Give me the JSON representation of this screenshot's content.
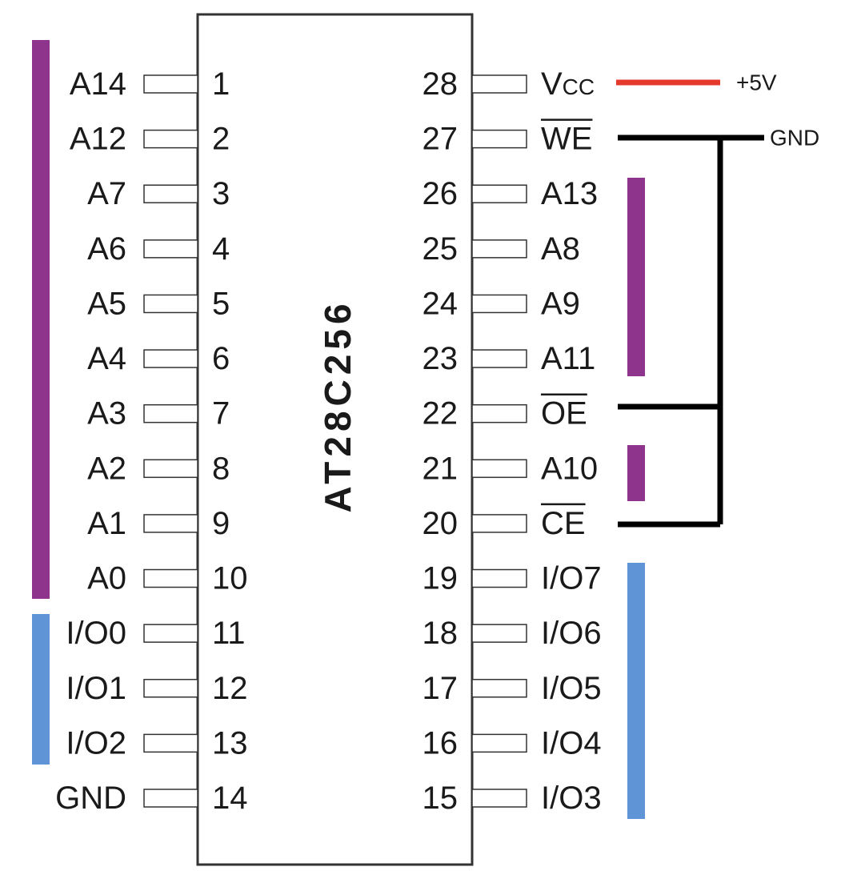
{
  "chip": {
    "name": "AT28C256"
  },
  "pins": {
    "left": [
      {
        "number": 1,
        "label": "A14"
      },
      {
        "number": 2,
        "label": "A12"
      },
      {
        "number": 3,
        "label": "A7"
      },
      {
        "number": 4,
        "label": "A6"
      },
      {
        "number": 5,
        "label": "A5"
      },
      {
        "number": 6,
        "label": "A4"
      },
      {
        "number": 7,
        "label": "A3"
      },
      {
        "number": 8,
        "label": "A2"
      },
      {
        "number": 9,
        "label": "A1"
      },
      {
        "number": 10,
        "label": "A0"
      },
      {
        "number": 11,
        "label": "I/O0"
      },
      {
        "number": 12,
        "label": "I/O1"
      },
      {
        "number": 13,
        "label": "I/O2"
      },
      {
        "number": 14,
        "label": "GND"
      }
    ],
    "right": [
      {
        "number": 28,
        "label": "Vcc"
      },
      {
        "number": 27,
        "label": "WE",
        "active_low": true
      },
      {
        "number": 26,
        "label": "A13"
      },
      {
        "number": 25,
        "label": "A8"
      },
      {
        "number": 24,
        "label": "A9"
      },
      {
        "number": 23,
        "label": "A11"
      },
      {
        "number": 22,
        "label": "OE",
        "active_low": true
      },
      {
        "number": 21,
        "label": "A10"
      },
      {
        "number": 20,
        "label": "CE",
        "active_low": true
      },
      {
        "number": 19,
        "label": "I/O7"
      },
      {
        "number": 18,
        "label": "I/O6"
      },
      {
        "number": 17,
        "label": "I/O5"
      },
      {
        "number": 16,
        "label": "I/O4"
      },
      {
        "number": 15,
        "label": "I/O3"
      }
    ]
  },
  "connections": {
    "supply": "+5V",
    "ground": "GND"
  }
}
